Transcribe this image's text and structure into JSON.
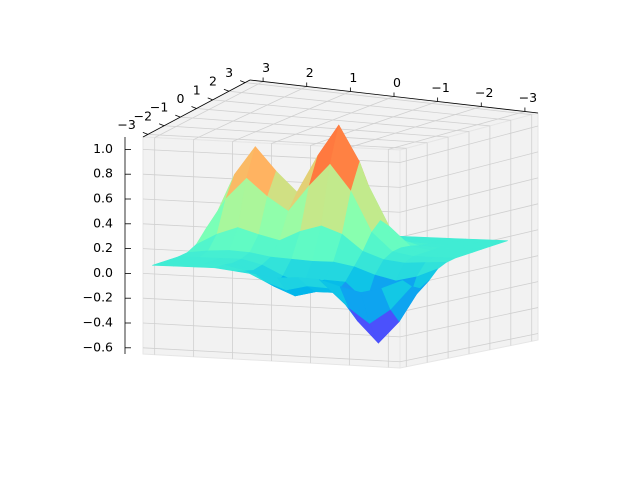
{
  "chart_data": {
    "type": "surface",
    "cmap": "rainbow",
    "grid": true,
    "x": [
      -3,
      -2.5,
      -2,
      -1.5,
      -1,
      -0.5,
      0,
      0.5,
      1,
      1.5,
      2,
      2.5,
      3
    ],
    "y": [
      -3,
      -2.5,
      -2,
      -1.5,
      -1,
      -0.5,
      0,
      0.5,
      1,
      1.5,
      2,
      2.5,
      3
    ],
    "z": [
      [
        -0.04,
        -0.11,
        -0.15,
        -0.11,
        -0.06,
        -0.05,
        -0.06,
        -0.04,
        -0.02,
        0,
        0,
        0,
        0
      ],
      [
        -0.11,
        -0.3,
        -0.42,
        -0.3,
        -0.15,
        -0.14,
        -0.18,
        -0.12,
        -0.04,
        0,
        0,
        0,
        0
      ],
      [
        -0.15,
        -0.42,
        -0.6,
        -0.43,
        -0.21,
        -0.21,
        -0.25,
        -0.18,
        -0.06,
        -0.01,
        0,
        0,
        0
      ],
      [
        -0.11,
        -0.3,
        -0.42,
        -0.3,
        -0.15,
        -0.14,
        -0.18,
        -0.12,
        -0.04,
        0,
        0,
        0,
        0
      ],
      [
        -0.04,
        -0.11,
        -0.15,
        -0.11,
        -0.05,
        -0.02,
        -0.02,
        -0.01,
        0,
        0.03,
        0.04,
        0.03,
        0.01
      ],
      [
        -0.01,
        -0.02,
        -0.03,
        -0.01,
        0.05,
        0.18,
        0.24,
        0.19,
        0.11,
        0.15,
        0.2,
        0.14,
        0.05
      ],
      [
        0,
        0,
        0,
        0.03,
        0.18,
        0.5,
        0.71,
        0.53,
        0.32,
        0.43,
        0.57,
        0.4,
        0.14
      ],
      [
        0,
        0,
        0,
        0.04,
        0.25,
        0.71,
        1.0,
        0.75,
        0.45,
        0.61,
        0.8,
        0.57,
        0.2
      ],
      [
        0,
        0,
        0,
        0.03,
        0.18,
        0.5,
        0.71,
        0.53,
        0.32,
        0.43,
        0.57,
        0.4,
        0.14
      ],
      [
        0,
        0,
        0,
        0.01,
        0.06,
        0.18,
        0.25,
        0.19,
        0.11,
        0.15,
        0.2,
        0.14,
        0.05
      ],
      [
        0,
        0,
        0,
        0,
        0.01,
        0.03,
        0.04,
        0.03,
        0.02,
        0.03,
        0.04,
        0.03,
        0.01
      ],
      [
        0,
        0,
        0,
        0,
        0,
        0,
        0,
        0,
        0,
        0,
        0,
        0,
        0
      ],
      [
        0,
        0,
        0,
        0,
        0,
        0,
        0,
        0,
        0,
        0,
        0,
        0,
        0
      ]
    ],
    "xlim": [
      -3.3,
      3.3
    ],
    "ylim": [
      -3.3,
      3.3
    ],
    "zlim": [
      -0.65,
      1.1
    ],
    "xticks": [
      {
        "value": -3,
        "label": "−3"
      },
      {
        "value": -2,
        "label": "−2"
      },
      {
        "value": -1,
        "label": "−1"
      },
      0,
      1,
      2,
      3
    ],
    "yticks": [
      {
        "value": -3,
        "label": "−3"
      },
      {
        "value": -2,
        "label": "−2"
      },
      {
        "value": -1,
        "label": "−1"
      },
      0,
      1,
      2,
      3
    ],
    "zticks": [
      {
        "value": -0.6,
        "label": "−0.6"
      },
      {
        "value": -0.4,
        "label": "−0.4"
      },
      {
        "value": -0.2,
        "label": "−0.2"
      },
      {
        "value": 0,
        "label": "0.0"
      },
      0.2,
      0.4,
      0.6,
      0.8,
      {
        "value": 1,
        "label": "1.0"
      }
    ]
  }
}
